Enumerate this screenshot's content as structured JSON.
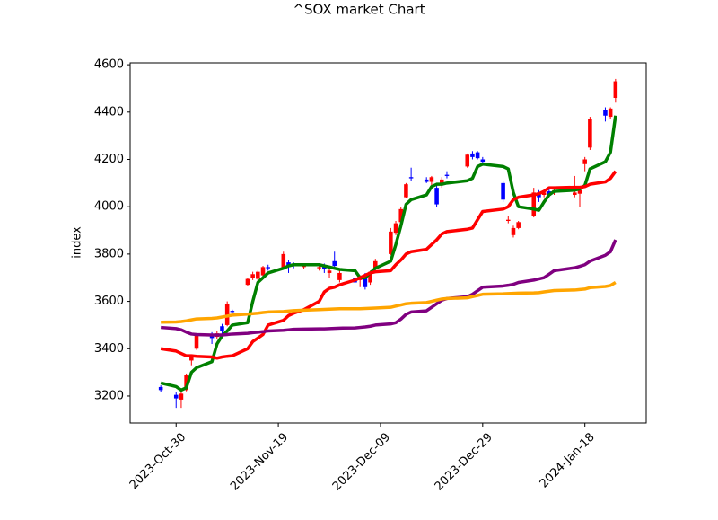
{
  "chart_data": {
    "type": "candlestick",
    "title": "^SOX market Chart",
    "y_label": "index",
    "x": [
      "2023-10-27",
      "2023-10-30",
      "2023-10-31",
      "2023-11-01",
      "2023-11-02",
      "2023-11-03",
      "2023-11-06",
      "2023-11-07",
      "2023-11-08",
      "2023-11-09",
      "2023-11-10",
      "2023-11-13",
      "2023-11-14",
      "2023-11-15",
      "2023-11-16",
      "2023-11-17",
      "2023-11-20",
      "2023-11-21",
      "2023-11-22",
      "2023-11-24",
      "2023-11-27",
      "2023-11-28",
      "2023-11-29",
      "2023-11-30",
      "2023-12-01",
      "2023-12-04",
      "2023-12-05",
      "2023-12-06",
      "2023-12-07",
      "2023-12-08",
      "2023-12-11",
      "2023-12-12",
      "2023-12-13",
      "2023-12-14",
      "2023-12-15",
      "2023-12-18",
      "2023-12-19",
      "2023-12-20",
      "2023-12-21",
      "2023-12-22",
      "2023-12-26",
      "2023-12-27",
      "2023-12-28",
      "2023-12-29",
      "2024-01-02",
      "2024-01-03",
      "2024-01-04",
      "2024-01-05",
      "2024-01-08",
      "2024-01-09",
      "2024-01-10",
      "2024-01-11",
      "2024-01-12",
      "2024-01-16",
      "2024-01-17",
      "2024-01-18",
      "2024-01-19",
      "2024-01-22",
      "2024-01-23",
      "2024-01-24"
    ],
    "open": [
      3238,
      3205,
      3185,
      3225,
      3350,
      3400,
      3455,
      3450,
      3495,
      3500,
      3560,
      3670,
      3700,
      3695,
      3710,
      3745,
      3740,
      3765,
      3760,
      3745,
      3740,
      3750,
      3720,
      3770,
      3690,
      3700,
      3690,
      3700,
      3680,
      3740,
      3800,
      3890,
      3935,
      4040,
      4125,
      4115,
      4105,
      4080,
      4100,
      4135,
      4170,
      4225,
      4230,
      4200,
      4100,
      3940,
      3880,
      3910,
      3960,
      4060,
      4050,
      4065,
      4060,
      4050,
      4055,
      4180,
      4250,
      4410,
      4380,
      4460
    ],
    "high": [
      3245,
      3215,
      3215,
      3295,
      3375,
      3465,
      3470,
      3475,
      3505,
      3600,
      3565,
      3700,
      3725,
      3730,
      3750,
      3755,
      3810,
      3775,
      3765,
      3760,
      3755,
      3760,
      3740,
      3810,
      3730,
      3710,
      3710,
      3720,
      3730,
      3780,
      3910,
      3940,
      4000,
      4100,
      4165,
      4125,
      4130,
      4095,
      4125,
      4150,
      4225,
      4235,
      4235,
      4210,
      4110,
      3960,
      3920,
      3940,
      4080,
      4070,
      4065,
      4080,
      4075,
      4130,
      4080,
      4210,
      4380,
      4420,
      4420,
      4540
    ],
    "low": [
      3218,
      3150,
      3150,
      3220,
      3330,
      3395,
      3420,
      3440,
      3460,
      3495,
      3548,
      3665,
      3690,
      3680,
      3705,
      3730,
      3735,
      3720,
      3740,
      3735,
      3730,
      3720,
      3700,
      3740,
      3680,
      3655,
      3660,
      3650,
      3670,
      3735,
      3795,
      3880,
      3930,
      4035,
      4110,
      4100,
      4085,
      4000,
      4080,
      4120,
      4165,
      4200,
      4200,
      4180,
      4020,
      3930,
      3870,
      3905,
      3955,
      4020,
      4040,
      4045,
      4050,
      4040,
      4000,
      4150,
      4240,
      4360,
      4370,
      4440
    ],
    "close": [
      3225,
      3190,
      3210,
      3290,
      3365,
      3455,
      3445,
      3465,
      3475,
      3590,
      3555,
      3695,
      3715,
      3725,
      3745,
      3740,
      3800,
      3745,
      3750,
      3755,
      3745,
      3735,
      3730,
      3750,
      3720,
      3680,
      3695,
      3660,
      3725,
      3770,
      3895,
      3930,
      3990,
      4095,
      4120,
      4105,
      4125,
      4010,
      4115,
      4130,
      4220,
      4210,
      4205,
      4190,
      4030,
      3945,
      3910,
      3935,
      4060,
      4040,
      4060,
      4050,
      4070,
      4060,
      4070,
      4200,
      4370,
      4385,
      4415,
      4530
    ],
    "up_color": "red",
    "down_color": "blue",
    "overlays": [
      {
        "color": "green",
        "values": [
          3255,
          3240,
          3225,
          3235,
          3300,
          3320,
          3345,
          3420,
          3455,
          3475,
          3500,
          3510,
          3600,
          3680,
          3700,
          3720,
          3740,
          3750,
          3755,
          3755,
          3755,
          3750,
          3745,
          3740,
          3735,
          3730,
          3700,
          3700,
          3720,
          3740,
          3770,
          3840,
          3920,
          4010,
          4030,
          4050,
          4085,
          4095,
          4095,
          4100,
          4110,
          4120,
          4170,
          4180,
          4170,
          4160,
          4060,
          4000,
          3990,
          3985,
          4020,
          4050,
          4065,
          4070,
          4075,
          4090,
          4160,
          4190,
          4230,
          4385
        ]
      },
      {
        "color": "red",
        "values": [
          3400,
          3390,
          3380,
          3370,
          3370,
          3368,
          3365,
          3360,
          3365,
          3368,
          3370,
          3400,
          3430,
          3445,
          3460,
          3500,
          3520,
          3540,
          3550,
          3565,
          3600,
          3640,
          3655,
          3660,
          3670,
          3690,
          3700,
          3710,
          3720,
          3725,
          3730,
          3755,
          3775,
          3800,
          3810,
          3820,
          3840,
          3860,
          3885,
          3895,
          3905,
          3910,
          3945,
          3980,
          3990,
          4000,
          4030,
          4040,
          4050,
          4055,
          4065,
          4080,
          4080,
          4082,
          4082,
          4085,
          4095,
          4105,
          4120,
          4150
        ]
      },
      {
        "color": "purple",
        "values": [
          3490,
          3485,
          3480,
          3470,
          3462,
          3460,
          3458,
          3458,
          3458,
          3460,
          3462,
          3465,
          3468,
          3470,
          3472,
          3475,
          3478,
          3480,
          3482,
          3483,
          3484,
          3484,
          3485,
          3486,
          3487,
          3488,
          3490,
          3492,
          3495,
          3500,
          3505,
          3510,
          3525,
          3545,
          3555,
          3560,
          3575,
          3590,
          3605,
          3612,
          3620,
          3630,
          3645,
          3660,
          3665,
          3668,
          3672,
          3680,
          3690,
          3695,
          3700,
          3715,
          3730,
          3742,
          3748,
          3755,
          3770,
          3795,
          3810,
          3860
        ]
      },
      {
        "color": "orange",
        "values": [
          3512,
          3513,
          3515,
          3518,
          3522,
          3526,
          3528,
          3530,
          3534,
          3538,
          3542,
          3546,
          3548,
          3550,
          3553,
          3555,
          3557,
          3559,
          3561,
          3563,
          3565,
          3566,
          3567,
          3568,
          3569,
          3569,
          3569,
          3570,
          3571,
          3572,
          3575,
          3580,
          3585,
          3590,
          3592,
          3595,
          3600,
          3605,
          3610,
          3612,
          3615,
          3620,
          3625,
          3630,
          3632,
          3633,
          3634,
          3635,
          3636,
          3637,
          3640,
          3643,
          3646,
          3648,
          3650,
          3652,
          3658,
          3663,
          3667,
          3680
        ]
      }
    ],
    "xlim": [
      "2023-10-21",
      "2024-01-30"
    ],
    "xticks": [
      {
        "value": "2023-10-30",
        "label": "2023-Oct-30"
      },
      {
        "value": "2023-11-19",
        "label": "2023-Nov-19"
      },
      {
        "value": "2023-12-09",
        "label": "2023-Dec-09"
      },
      {
        "value": "2023-12-29",
        "label": "2023-Dec-29"
      },
      {
        "value": "2024-01-18",
        "label": "2024-Jan-18"
      }
    ],
    "ylim": [
      3086,
      4608
    ],
    "yticks": [
      3200,
      3400,
      3600,
      3800,
      4000,
      4200,
      4400,
      4600
    ]
  }
}
